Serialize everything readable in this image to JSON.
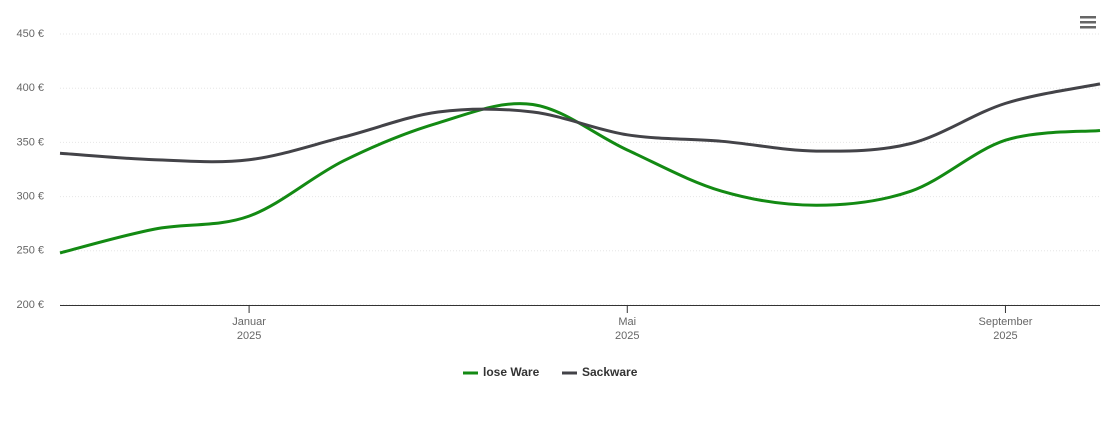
{
  "chart_data": {
    "type": "line",
    "x": [
      "2024-11",
      "2024-12",
      "2025-01",
      "2025-02",
      "2025-03",
      "2025-04",
      "2025-05",
      "2025-06",
      "2025-07",
      "2025-08",
      "2025-09",
      "2025-10"
    ],
    "series": [
      {
        "name": "lose Ware",
        "color": "#138a13",
        "values": [
          248,
          270,
          282,
          333,
          368,
          385,
          343,
          305,
          292,
          305,
          352,
          361
        ]
      },
      {
        "name": "Sackware",
        "color": "#434348",
        "values": [
          340,
          334,
          334,
          355,
          378,
          378,
          357,
          351,
          342,
          349,
          386,
          404
        ]
      }
    ],
    "xlim": [
      "2024-11",
      "2025-10"
    ],
    "xticks": [
      {
        "value": "2025-01",
        "label": "Januar\n2025"
      },
      {
        "value": "2025-05",
        "label": "Mai\n2025"
      },
      {
        "value": "2025-09",
        "label": "September\n2025"
      }
    ],
    "ylim": [
      200,
      450
    ],
    "yticks": [
      {
        "value": 200,
        "label": "200 €"
      },
      {
        "value": 250,
        "label": "250 €"
      },
      {
        "value": 300,
        "label": "300 €"
      },
      {
        "value": 350,
        "label": "350 €"
      },
      {
        "value": 400,
        "label": "400 €"
      },
      {
        "value": 450,
        "label": "450 €"
      }
    ],
    "grid": true,
    "legend": "bottom"
  }
}
